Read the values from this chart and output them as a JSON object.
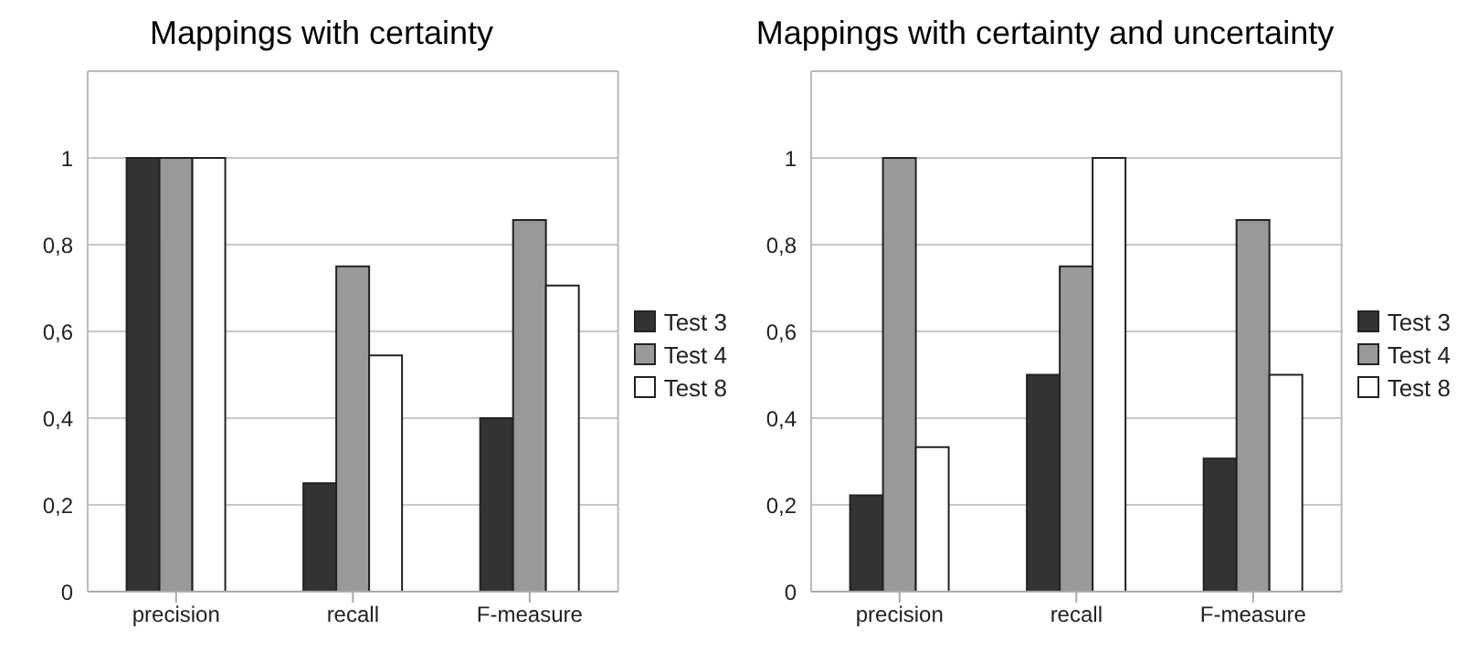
{
  "chart_data": [
    {
      "type": "bar",
      "title": "Mappings with certainty",
      "categories": [
        "precision",
        "recall",
        "F-measure"
      ],
      "series": [
        {
          "name": "Test 3",
          "color": "#333333",
          "values": [
            1,
            0.25,
            0.4
          ]
        },
        {
          "name": "Test 4",
          "color": "#999999",
          "values": [
            1,
            0.75,
            0.857
          ]
        },
        {
          "name": "Test 8",
          "color": "#ffffff",
          "values": [
            1,
            0.545,
            0.706
          ]
        }
      ],
      "ylim": [
        0,
        1.2
      ],
      "yticks": [
        {
          "value": 0,
          "label": "0"
        },
        {
          "value": 0.2,
          "label": "0,2"
        },
        {
          "value": 0.4,
          "label": "0,4"
        },
        {
          "value": 0.6,
          "label": "0,6"
        },
        {
          "value": 0.8,
          "label": "0,8"
        },
        {
          "value": 1,
          "label": "1"
        }
      ],
      "grid": "y",
      "legend": "right"
    },
    {
      "type": "bar",
      "title": "Mappings with certainty and uncertainty",
      "categories": [
        "precision",
        "recall",
        "F-measure"
      ],
      "series": [
        {
          "name": "Test 3",
          "color": "#333333",
          "values": [
            0.222,
            0.5,
            0.307
          ]
        },
        {
          "name": "Test 4",
          "color": "#999999",
          "values": [
            1,
            0.75,
            0.857
          ]
        },
        {
          "name": "Test 8",
          "color": "#ffffff",
          "values": [
            0.333,
            1,
            0.5
          ]
        }
      ],
      "ylim": [
        0,
        1.2
      ],
      "yticks": [
        {
          "value": 0,
          "label": "0"
        },
        {
          "value": 0.2,
          "label": "0,2"
        },
        {
          "value": 0.4,
          "label": "0,4"
        },
        {
          "value": 0.6,
          "label": "0,6"
        },
        {
          "value": 0.8,
          "label": "0,8"
        },
        {
          "value": 1,
          "label": "1"
        }
      ],
      "grid": "y",
      "legend": "right"
    }
  ]
}
